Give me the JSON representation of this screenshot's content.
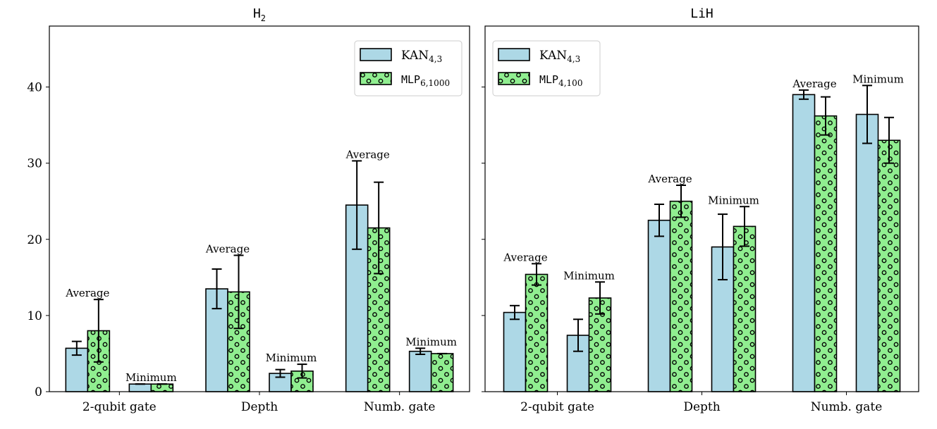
{
  "colors": {
    "kan": "#add8e6",
    "mlp": "#90ee90",
    "edge": "#000000"
  },
  "chart_data": [
    {
      "type": "bar",
      "title_main": "H",
      "title_sub": "2",
      "categories": [
        "2-qubit gate",
        "Depth",
        "Numb. gate"
      ],
      "ylim": [
        0,
        48
      ],
      "yticks": [
        0,
        10,
        20,
        30,
        40
      ],
      "show_ytick_labels": true,
      "legend": {
        "position": "top-right",
        "entries": [
          {
            "main": "KAN",
            "sub": "4,3",
            "series": 0
          },
          {
            "main": "MLP",
            "sub": "6,1000",
            "series": 1
          }
        ]
      },
      "groups": [
        {
          "label": "Average",
          "series": [
            {
              "name": "KAN",
              "values": [
                5.7,
                13.5,
                24.5
              ],
              "errors": [
                0.9,
                2.6,
                5.8
              ]
            },
            {
              "name": "MLP",
              "values": [
                8.0,
                13.1,
                21.5
              ],
              "errors": [
                4.1,
                4.8,
                6.0
              ]
            }
          ]
        },
        {
          "label": "Minimum",
          "series": [
            {
              "name": "KAN",
              "values": [
                1.0,
                2.4,
                5.3
              ],
              "errors": [
                0,
                0.5,
                0.4
              ]
            },
            {
              "name": "MLP",
              "values": [
                1.0,
                2.7,
                5.0
              ],
              "errors": [
                0,
                0.9,
                0
              ]
            }
          ]
        }
      ]
    },
    {
      "type": "bar",
      "title_main": "LiH",
      "title_sub": "",
      "categories": [
        "2-qubit gate",
        "Depth",
        "Numb. gate"
      ],
      "ylim": [
        0,
        48
      ],
      "yticks": [
        0,
        10,
        20,
        30,
        40
      ],
      "show_ytick_labels": false,
      "legend": {
        "position": "top-left",
        "entries": [
          {
            "main": "KAN",
            "sub": "4,3",
            "series": 0
          },
          {
            "main": "MLP",
            "sub": "4,100",
            "series": 1
          }
        ]
      },
      "groups": [
        {
          "label": "Average",
          "series": [
            {
              "name": "KAN",
              "values": [
                10.4,
                22.5,
                39.0
              ],
              "errors": [
                0.9,
                2.1,
                0.6
              ]
            },
            {
              "name": "MLP",
              "values": [
                15.4,
                25.0,
                36.2
              ],
              "errors": [
                1.4,
                2.1,
                2.5
              ]
            }
          ]
        },
        {
          "label": "Minimum",
          "series": [
            {
              "name": "KAN",
              "values": [
                7.4,
                19.0,
                36.4
              ],
              "errors": [
                2.1,
                4.3,
                3.8
              ]
            },
            {
              "name": "MLP",
              "values": [
                12.3,
                21.7,
                33.0
              ],
              "errors": [
                2.1,
                2.6,
                3.0
              ]
            }
          ]
        }
      ]
    }
  ]
}
